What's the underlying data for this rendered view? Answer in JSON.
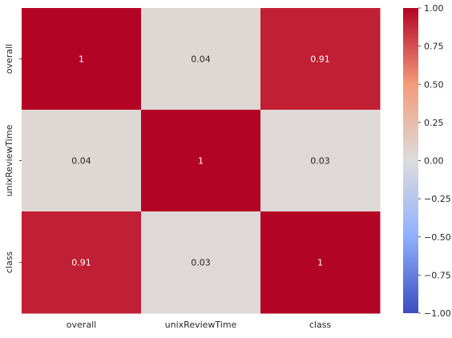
{
  "chart_data": {
    "type": "heatmap",
    "x_labels": [
      "overall",
      "unixReviewTime",
      "class"
    ],
    "y_labels": [
      "overall",
      "unixReviewTime",
      "class"
    ],
    "values": [
      [
        1,
        0.04,
        0.91
      ],
      [
        0.04,
        1,
        0.03
      ],
      [
        0.91,
        0.03,
        1
      ]
    ],
    "cell_labels": [
      [
        "1",
        "0.04",
        "0.91"
      ],
      [
        "0.04",
        "1",
        "0.03"
      ],
      [
        "0.91",
        "0.03",
        "1"
      ]
    ],
    "colormap": "coolwarm",
    "vmin": -1,
    "vmax": 1,
    "colorbar_ticks": [
      "1.00",
      "0.75",
      "0.50",
      "0.25",
      "0.00",
      "−0.25",
      "−0.50",
      "−0.75",
      "−1.00"
    ],
    "colorbar_tick_values": [
      1,
      0.75,
      0.5,
      0.25,
      0,
      -0.25,
      -0.5,
      -0.75,
      -1
    ],
    "colors": {
      "low": "#3b4cc0",
      "mid": "#dddcdc",
      "high": "#b40426",
      "text": "#262626",
      "cell_text": "#ffffff"
    }
  }
}
